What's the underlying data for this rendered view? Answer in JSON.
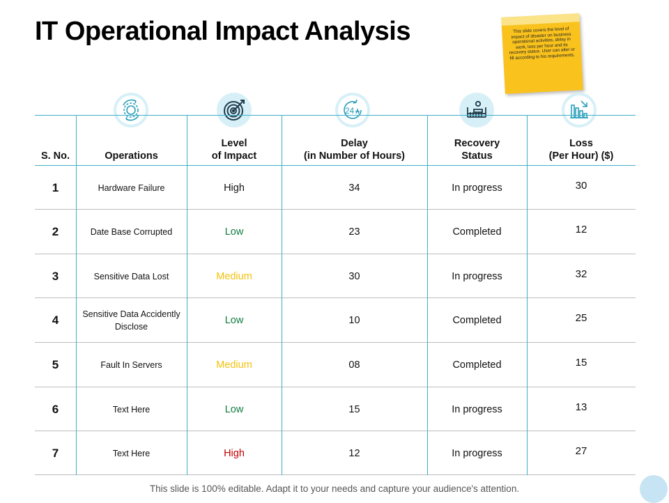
{
  "title": "IT Operational Impact Analysis",
  "note": "This slide covers the level of impact of disaster on business operational activities, delay in work, loss per hour and its recovery status. User can alter or fill according to his requirements.",
  "footer": "This slide is 100% editable. Adapt it to your needs and capture your audience's attention.",
  "icons": [
    "gear-cycle-icon",
    "target-icon",
    "clock-24h-icon",
    "recovery-bed-icon",
    "bar-chart-down-icon"
  ],
  "headers": {
    "sno": "S. No.",
    "operations": "Operations",
    "impact": [
      "Level",
      "of Impact"
    ],
    "delay": [
      "Delay",
      "(in Number of Hours)"
    ],
    "recovery": [
      "Recovery",
      "Status"
    ],
    "loss": [
      "Loss",
      "(Per Hour) ($)"
    ]
  },
  "rows": [
    {
      "sno": "1",
      "operation": "Hardware Failure",
      "impact": "High",
      "delay": "34",
      "status": "In progress",
      "loss": "30"
    },
    {
      "sno": "2",
      "operation": "Date Base Corrupted",
      "impact": "Low",
      "delay": "23",
      "status": "Completed",
      "loss": "12"
    },
    {
      "sno": "3",
      "operation": "Sensitive Data Lost",
      "impact": "Medium",
      "delay": "30",
      "status": "In progress",
      "loss": "32"
    },
    {
      "sno": "4",
      "operation": "Sensitive Data Accidently Disclose",
      "impact": "Low",
      "delay": "10",
      "status": "Completed",
      "loss": "25"
    },
    {
      "sno": "5",
      "operation": "Fault In Servers",
      "impact": "Medium",
      "delay": "08",
      "status": "Completed",
      "loss": "15"
    },
    {
      "sno": "6",
      "operation": "Text Here",
      "impact": "Low",
      "delay": "15",
      "status": "In progress",
      "loss": "13"
    },
    {
      "sno": "7",
      "operation": "Text Here",
      "impact": "High",
      "delay": "12",
      "status": "In progress",
      "loss": "27"
    }
  ],
  "colors": {
    "accent": "#3fb0c8",
    "icon_ring": "#d7f0f7",
    "high": "#c00000",
    "high_first": "#111111",
    "low": "#107c41",
    "medium": "#f2c10b",
    "note": "#f9c21d"
  }
}
